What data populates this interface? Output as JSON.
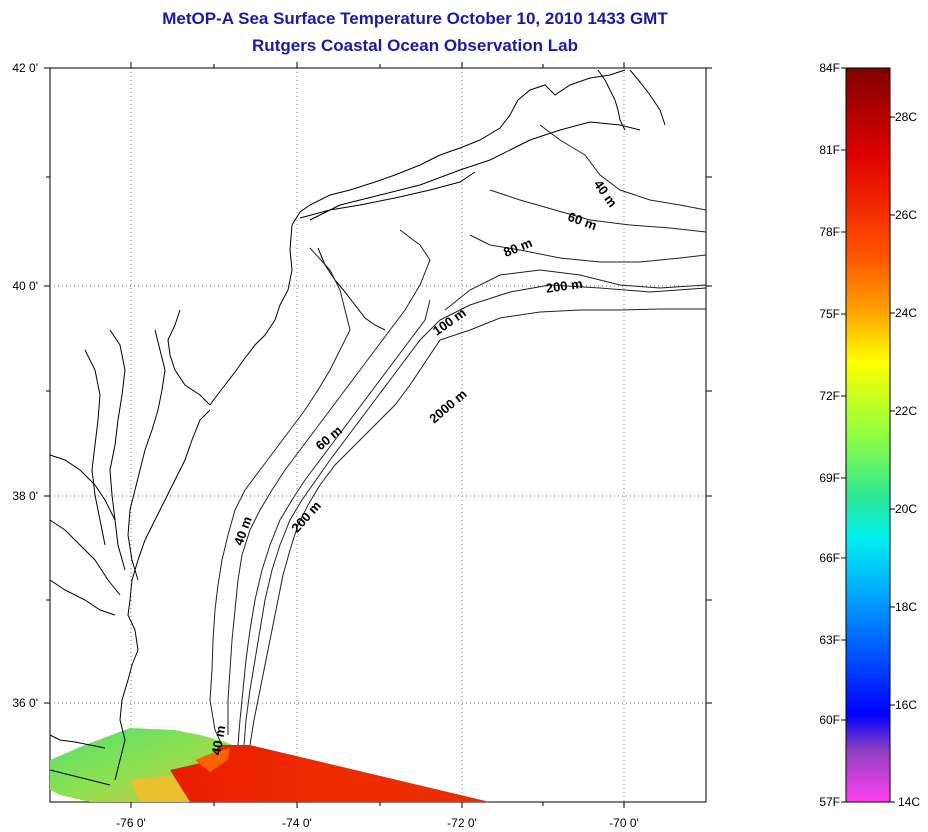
{
  "title": {
    "line1": "MetOP-A Sea Surface Temperature October 10, 2010 1433 GMT",
    "line2": "Rutgers Coastal Ocean Observation Lab"
  },
  "map": {
    "lat_labels": [
      "42 0'",
      "40 0'",
      "38 0'",
      "36 0'"
    ],
    "lon_labels": [
      "-76 0'",
      "-74 0'",
      "-72 0'",
      "-70 0'"
    ],
    "isobath_labels": [
      "40 m",
      "60 m",
      "80 m",
      "200 m",
      "100 m",
      "2000 m",
      "60 m",
      "200 m",
      "40 m",
      "40 m"
    ]
  },
  "colorbar": {
    "f_labels": [
      "84F",
      "81F",
      "78F",
      "75F",
      "72F",
      "69F",
      "66F",
      "63F",
      "60F",
      "57F"
    ],
    "c_labels": [
      "28C",
      "26C",
      "24C",
      "22C",
      "20C",
      "18C",
      "16C",
      "14C"
    ],
    "colors": [
      "#800000",
      "#ff2000",
      "#ff8c00",
      "#ffff00",
      "#40e060",
      "#00e8e8",
      "#1e90ff",
      "#0000ff",
      "#8040c0",
      "#ff40e0"
    ]
  }
}
